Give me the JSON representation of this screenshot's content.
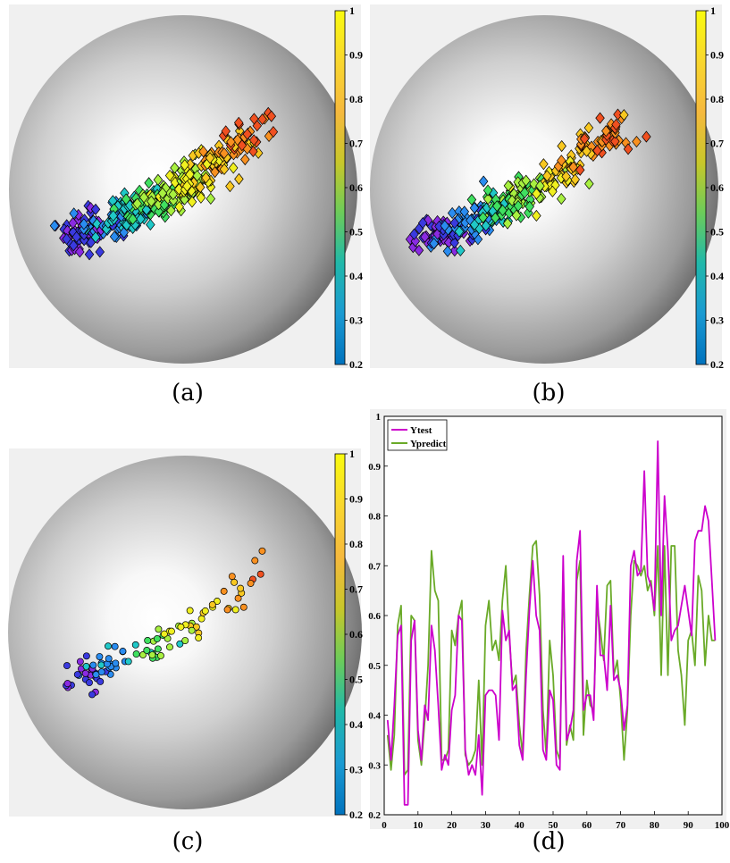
{
  "captions": [
    "(a)",
    "(b)",
    "(c)",
    "(d)"
  ],
  "colorbar_ticks": [
    "0.2",
    "0.3",
    "0.4",
    "0.5",
    "0.6",
    "0.7",
    "0.8",
    "0.9",
    "1"
  ],
  "colors": {
    "panel_bg": "#f0f0f0",
    "ytest": "#cc00cc",
    "ypredict": "#6aaa28",
    "colormap": [
      "#0072bd",
      "#1a9ad2",
      "#20b8aa",
      "#6ccc5a",
      "#c8c72a",
      "#f6b93e",
      "#f9d72e",
      "#f9fb0e"
    ],
    "point_palette": [
      "#8a2be2",
      "#3a3adf",
      "#2a8cf0",
      "#20c8c8",
      "#40e060",
      "#a8f040",
      "#f0f020",
      "#f8c820",
      "#f89020",
      "#f05020"
    ]
  },
  "chart_data": [
    {
      "panel": "a",
      "type": "scatter",
      "marker": "diamond",
      "description_of_marks": "Visualization of ~400 diamond markers on a shaded hemisphere, colored from violet/blue (lower-left) through green and yellow to orange/red (upper-right)",
      "colorbar": {
        "min": 0.2,
        "max": 1,
        "ticks": [
          0.2,
          0.3,
          0.4,
          0.5,
          0.6,
          0.7,
          0.8,
          0.9,
          1
        ]
      }
    },
    {
      "panel": "b",
      "type": "scatter",
      "marker": "diamond",
      "description_of_marks": "Visualization of ~320 diamond markers on a shaded hemisphere, colored from violet/blue (lower-left) through green and yellow to orange/red (upper-right)",
      "colorbar": {
        "min": 0.2,
        "max": 1,
        "ticks": [
          0.2,
          0.3,
          0.4,
          0.5,
          0.6,
          0.7,
          0.8,
          0.9,
          1
        ]
      }
    },
    {
      "panel": "c",
      "type": "scatter",
      "marker": "circle",
      "description_of_marks": "Visualization of ~100 circle markers on a shaded hemisphere, colored from violet/blue (lower-left) through green and yellow to orange/red (upper-right)",
      "colorbar": {
        "min": 0.2,
        "max": 1,
        "ticks": [
          0.2,
          0.3,
          0.4,
          0.5,
          0.6,
          0.7,
          0.8,
          0.9,
          1
        ]
      }
    },
    {
      "panel": "d",
      "type": "line",
      "xlim": [
        0,
        100
      ],
      "ylim": [
        0.2,
        1
      ],
      "xticks": [
        "0",
        "10",
        "20",
        "30",
        "40",
        "50",
        "60",
        "70",
        "80",
        "90",
        "100"
      ],
      "yticks": [
        "0.2",
        "0.3",
        "0.4",
        "0.5",
        "0.6",
        "0.7",
        "0.8",
        "0.9",
        "1"
      ],
      "legend": {
        "position": "top-left",
        "entries": [
          "Ytest",
          "Ypredict"
        ]
      },
      "x": [
        1,
        2,
        3,
        4,
        5,
        6,
        7,
        8,
        9,
        10,
        11,
        12,
        13,
        14,
        15,
        16,
        17,
        18,
        19,
        20,
        21,
        22,
        23,
        24,
        25,
        26,
        27,
        28,
        29,
        30,
        31,
        32,
        33,
        34,
        35,
        36,
        37,
        38,
        39,
        40,
        41,
        42,
        43,
        44,
        45,
        46,
        47,
        48,
        49,
        50,
        51,
        52,
        53,
        54,
        55,
        56,
        57,
        58,
        59,
        60,
        61,
        62,
        63,
        64,
        65,
        66,
        67,
        68,
        69,
        70,
        71,
        72,
        73,
        74,
        75,
        76,
        77,
        78,
        79,
        80,
        81,
        82,
        83,
        84,
        85,
        86,
        87,
        88,
        89,
        90,
        91,
        92,
        93,
        94,
        95,
        96,
        97,
        98
      ],
      "series": [
        {
          "name": "Ytest",
          "values": [
            0.39,
            0.31,
            0.42,
            0.56,
            0.58,
            0.22,
            0.22,
            0.55,
            0.59,
            0.37,
            0.31,
            0.42,
            0.39,
            0.58,
            0.53,
            0.42,
            0.29,
            0.32,
            0.3,
            0.41,
            0.44,
            0.6,
            0.59,
            0.33,
            0.28,
            0.3,
            0.28,
            0.36,
            0.24,
            0.44,
            0.45,
            0.45,
            0.44,
            0.35,
            0.61,
            0.55,
            0.57,
            0.45,
            0.46,
            0.34,
            0.31,
            0.48,
            0.61,
            0.71,
            0.6,
            0.57,
            0.33,
            0.31,
            0.45,
            0.43,
            0.3,
            0.29,
            0.72,
            0.35,
            0.37,
            0.41,
            0.71,
            0.77,
            0.41,
            0.44,
            0.44,
            0.39,
            0.66,
            0.52,
            0.52,
            0.45,
            0.62,
            0.47,
            0.48,
            0.45,
            0.37,
            0.42,
            0.7,
            0.73,
            0.68,
            0.69,
            0.89,
            0.68,
            0.66,
            0.61,
            0.95,
            0.6,
            0.84,
            0.73,
            0.55,
            0.57,
            0.58,
            0.62,
            0.66,
            0.61,
            0.56,
            0.75,
            0.77,
            0.77,
            0.82,
            0.79,
            0.67,
            0.55
          ]
        },
        {
          "name": "Ypredict",
          "values": [
            0.36,
            0.29,
            0.36,
            0.58,
            0.62,
            0.28,
            0.29,
            0.6,
            0.59,
            0.35,
            0.3,
            0.39,
            0.5,
            0.73,
            0.65,
            0.63,
            0.31,
            0.31,
            0.33,
            0.57,
            0.54,
            0.6,
            0.63,
            0.32,
            0.3,
            0.31,
            0.33,
            0.47,
            0.3,
            0.58,
            0.63,
            0.53,
            0.55,
            0.51,
            0.63,
            0.7,
            0.56,
            0.46,
            0.48,
            0.38,
            0.32,
            0.53,
            0.64,
            0.74,
            0.75,
            0.64,
            0.41,
            0.32,
            0.55,
            0.48,
            0.33,
            0.31,
            0.69,
            0.34,
            0.38,
            0.35,
            0.67,
            0.71,
            0.36,
            0.47,
            0.42,
            0.41,
            0.62,
            0.57,
            0.51,
            0.66,
            0.67,
            0.48,
            0.51,
            0.43,
            0.31,
            0.41,
            0.6,
            0.71,
            0.7,
            0.68,
            0.7,
            0.65,
            0.67,
            0.6,
            0.74,
            0.48,
            0.74,
            0.48,
            0.74,
            0.74,
            0.53,
            0.48,
            0.38,
            0.55,
            0.57,
            0.5,
            0.68,
            0.65,
            0.5,
            0.6,
            0.55,
            0.55
          ]
        }
      ]
    }
  ]
}
